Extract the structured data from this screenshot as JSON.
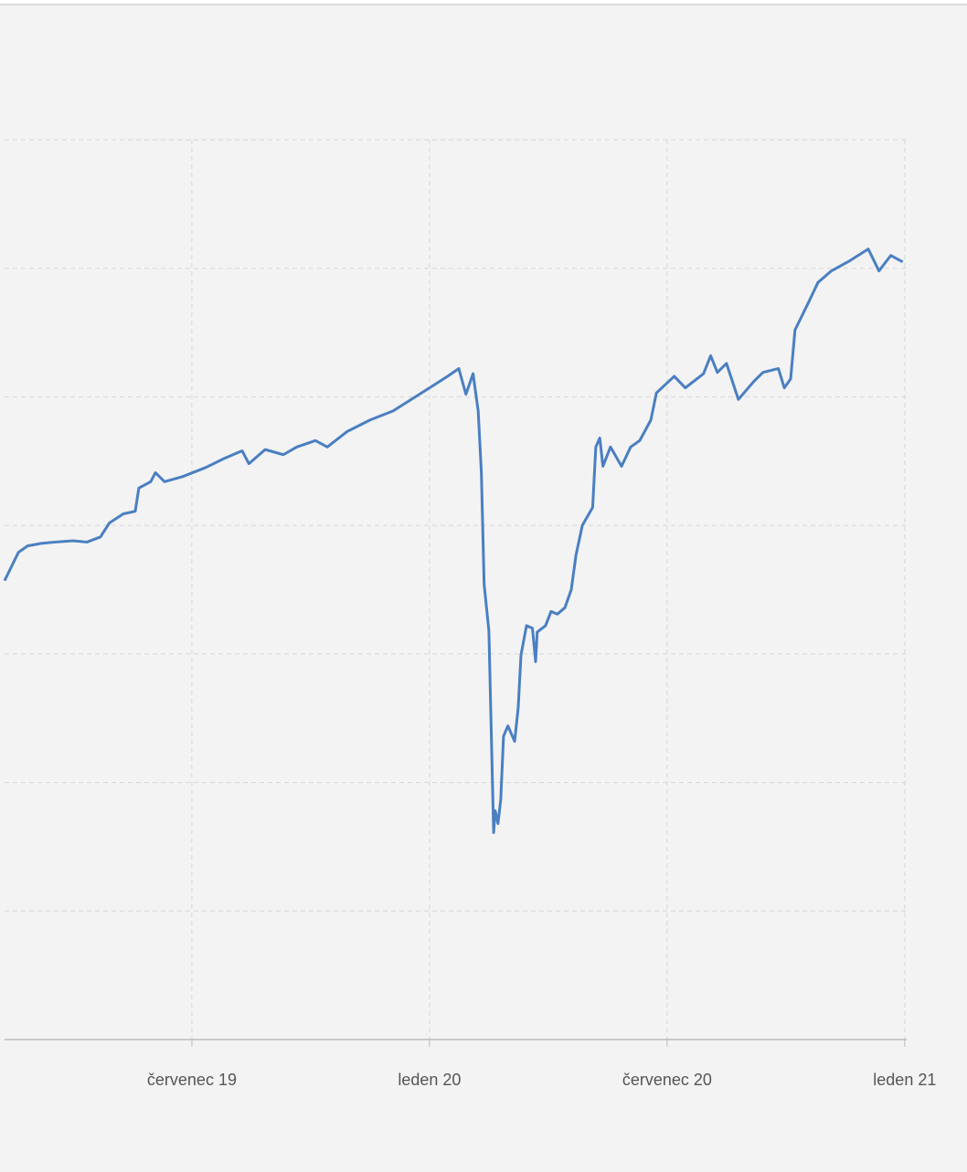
{
  "chart_data": {
    "type": "line",
    "x": [
      1.27,
      1.62,
      1.85,
      2.19,
      2.54,
      3.0,
      3.35,
      3.69,
      3.92,
      4.27,
      4.57,
      4.66,
      4.96,
      5.08,
      5.31,
      5.77,
      6.35,
      6.81,
      7.27,
      7.44,
      7.85,
      8.31,
      8.65,
      9.12,
      9.42,
      9.92,
      10.5,
      11.08,
      11.54,
      12.0,
      12.46,
      12.74,
      12.92,
      13.1,
      13.23,
      13.31,
      13.38,
      13.5,
      13.62,
      13.66,
      13.73,
      13.8,
      13.87,
      13.98,
      14.15,
      14.24,
      14.31,
      14.45,
      14.6,
      14.68,
      14.72,
      14.93,
      15.07,
      15.23,
      15.42,
      15.58,
      15.7,
      15.86,
      16.12,
      16.2,
      16.3,
      16.38,
      16.57,
      16.85,
      17.08,
      17.31,
      17.59,
      17.73,
      18.18,
      18.46,
      18.92,
      19.1,
      19.27,
      19.5,
      19.8,
      20.19,
      20.42,
      20.81,
      20.96,
      21.12,
      21.23,
      21.58,
      21.81,
      22.15,
      22.62,
      23.08,
      23.35,
      23.65,
      23.95
    ],
    "series": [
      {
        "color": "#4a7fc1",
        "values": [
          3.57,
          3.79,
          3.84,
          3.86,
          3.87,
          3.88,
          3.87,
          3.91,
          4.02,
          4.09,
          4.11,
          4.29,
          4.34,
          4.41,
          4.34,
          4.38,
          4.45,
          4.52,
          4.58,
          4.48,
          4.59,
          4.55,
          4.61,
          4.66,
          4.61,
          4.73,
          4.82,
          4.89,
          4.98,
          5.07,
          5.16,
          5.22,
          5.02,
          5.18,
          4.89,
          4.41,
          3.54,
          3.18,
          1.61,
          1.78,
          1.68,
          1.87,
          2.36,
          2.44,
          2.32,
          2.58,
          2.99,
          3.22,
          3.2,
          2.94,
          3.17,
          3.22,
          3.33,
          3.31,
          3.36,
          3.5,
          3.77,
          4.0,
          4.14,
          4.61,
          4.68,
          4.46,
          4.61,
          4.46,
          4.61,
          4.66,
          4.82,
          5.03,
          5.16,
          5.07,
          5.18,
          5.32,
          5.19,
          5.26,
          4.98,
          5.12,
          5.19,
          5.22,
          5.07,
          5.14,
          5.52,
          5.74,
          5.89,
          5.98,
          6.06,
          6.15,
          5.98,
          6.1,
          6.05
        ]
      }
    ],
    "xlim": [
      1.27,
      24.05
    ],
    "xticks": [
      {
        "value": 6,
        "label": "červenec 19"
      },
      {
        "value": 12,
        "label": "leden 20"
      },
      {
        "value": 18,
        "label": "červenec 20"
      },
      {
        "value": 24,
        "label": "leden 21"
      }
    ],
    "ylim": [
      0,
      7
    ],
    "yticks": [
      1,
      2,
      3,
      4,
      5,
      6,
      7
    ],
    "grid": true
  }
}
